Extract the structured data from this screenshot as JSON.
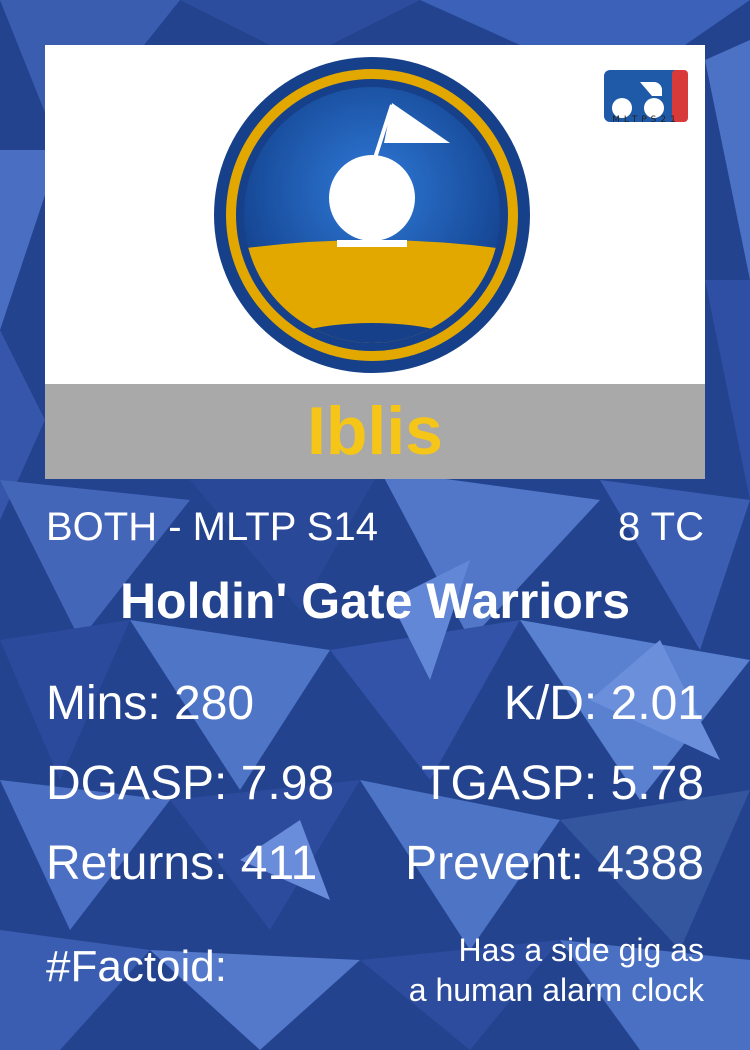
{
  "player": {
    "name": "Iblis"
  },
  "league": {
    "logo_text": "MLTPS21"
  },
  "meta": {
    "position_season": "BOTH - MLTP S14",
    "tc": "8 TC"
  },
  "team": {
    "name": "Holdin' Gate Warriors"
  },
  "stats": {
    "mins": "Mins: 280",
    "kd": "K/D: 2.01",
    "dgasp": "DGASP: 7.98",
    "tgasp": "TGASP: 5.78",
    "returns": "Returns: 411",
    "prevent": "Prevent: 4388"
  },
  "factoid": {
    "label": "#Factoid:",
    "line1": "Has a side gig as",
    "line2": "a human alarm clock"
  },
  "colors": {
    "name_yellow": "#f5c518",
    "logo_blue": "#1a4fa0",
    "logo_gold": "#e2a800",
    "bar_gray": "#a9a9a9",
    "bg_blue": "#23438f"
  }
}
